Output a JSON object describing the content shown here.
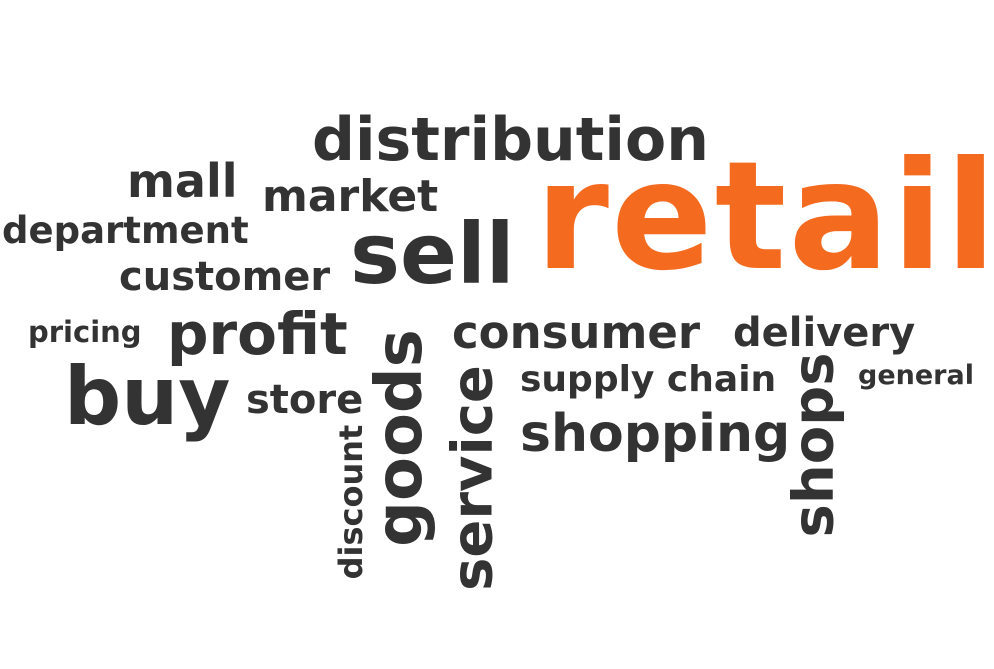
{
  "words": {
    "retail": "retail",
    "distribution": "distribution",
    "sell": "sell",
    "mall": "mall",
    "market": "market",
    "department": "department",
    "customer": "customer",
    "pricing": "pricing",
    "profit": "profit",
    "buy": "buy",
    "store": "store",
    "consumer": "consumer",
    "delivery": "delivery",
    "supply_chain": "supply chain",
    "general": "general",
    "shopping": "shopping",
    "goods": "goods",
    "service": "service",
    "discount": "discount",
    "shops": "shops"
  },
  "colors": {
    "highlight": "#f46a1f",
    "text": "#333333",
    "background": "#ffffff"
  }
}
